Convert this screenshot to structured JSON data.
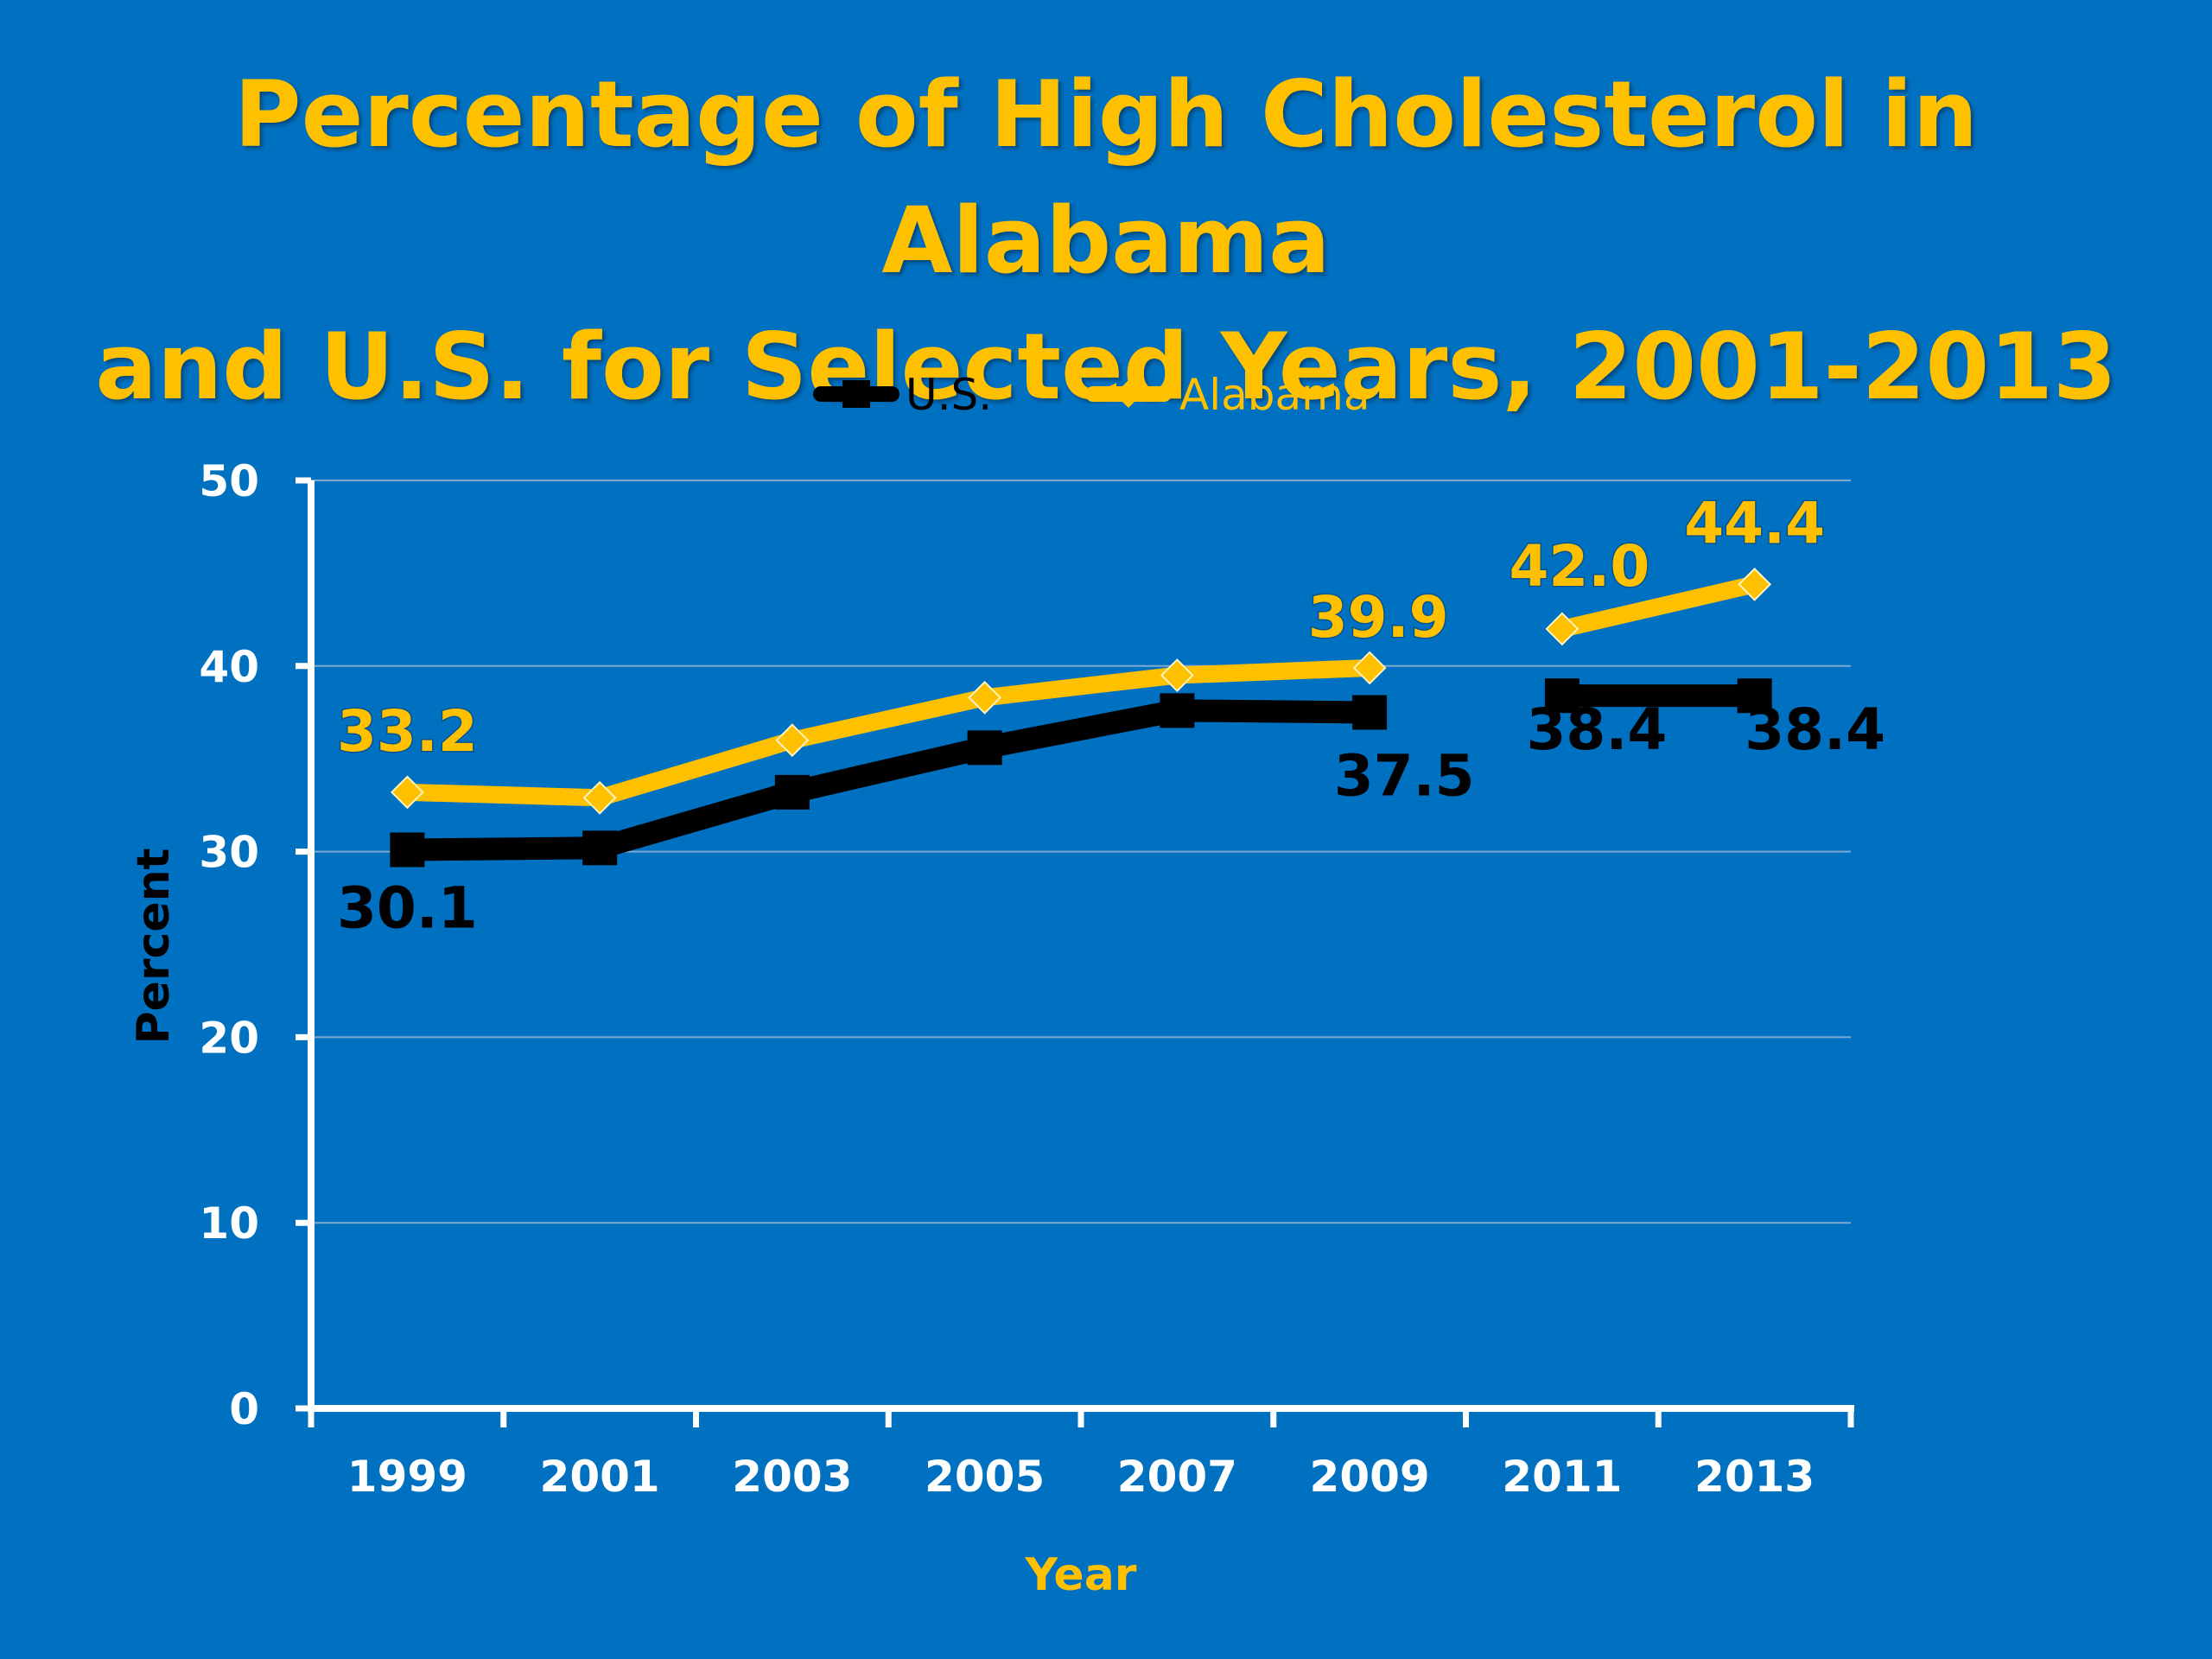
{
  "chart_data": {
    "type": "line",
    "title": [
      "Percentage of High Cholesterol in Alabama",
      "and U.S. for Selected Years, 2001-2013"
    ],
    "xlabel": "Year",
    "ylabel": "Percent",
    "categories": [
      "1999",
      "2001",
      "2003",
      "2005",
      "2007",
      "2009",
      "2011",
      "2013"
    ],
    "ylim": [
      0,
      50
    ],
    "yticks": [
      "0",
      "10",
      "20",
      "30",
      "40",
      "50"
    ],
    "grid": true,
    "legend_position": "top-center",
    "series": [
      {
        "name": "U.S.",
        "color": "#000000",
        "marker": "square",
        "values": [
          30.1,
          30.2,
          33.2,
          35.6,
          37.6,
          37.5,
          38.4,
          38.4
        ],
        "segments": [
          [
            0,
            5
          ],
          [
            6,
            7
          ]
        ],
        "labels": [
          {
            "index": 0,
            "text": "30.1"
          },
          {
            "index": 5,
            "text": "37.5"
          },
          {
            "index": 6,
            "text": "38.4"
          },
          {
            "index": 7,
            "text": "38.4"
          }
        ]
      },
      {
        "name": "Alabama",
        "color": "#ffc000",
        "marker": "diamond",
        "values": [
          33.2,
          32.9,
          36.0,
          38.3,
          39.5,
          39.9,
          42.0,
          44.4
        ],
        "segments": [
          [
            0,
            5
          ],
          [
            6,
            7
          ]
        ],
        "labels": [
          {
            "index": 0,
            "text": "33.2"
          },
          {
            "index": 5,
            "text": "39.9"
          },
          {
            "index": 6,
            "text": "42.0"
          },
          {
            "index": 7,
            "text": "44.4"
          }
        ]
      }
    ]
  }
}
